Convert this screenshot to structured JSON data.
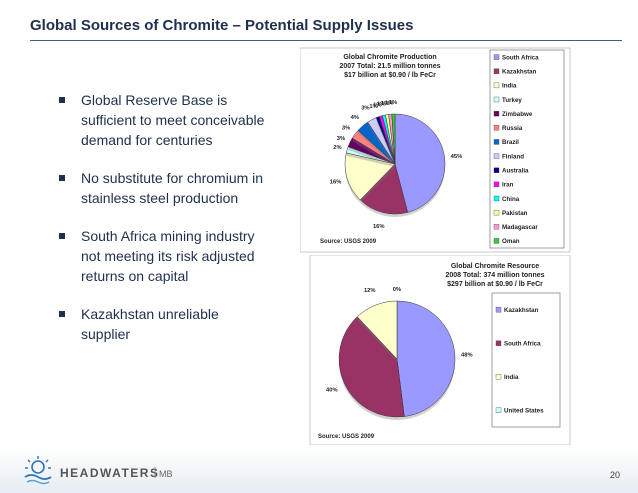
{
  "slide": {
    "title": "Global Sources of Chromite – Potential Supply Issues",
    "page_number": "20"
  },
  "bullets": [
    "Global Reserve Base is sufficient to meet conceivable demand for centuries",
    "No substitute for chromium in stainless steel production",
    "South Africa mining industry not meeting its risk adjusted returns on capital",
    "Kazakhstan unreliable supplier"
  ],
  "logo": {
    "brand": "HEADWATERS",
    "suffix": "MB"
  },
  "colors": {
    "title": "#1f2f4e",
    "rule": "#3b5f8a"
  },
  "chart_data": [
    {
      "type": "pie",
      "title": "Global Chromite Production",
      "subtitle": [
        "2007 Total: 21.5 million tonnes",
        "$17 billion at $0.90 / lb FeCr"
      ],
      "source": "Source: USGS 2009",
      "legend": "right",
      "categories": [
        "South Africa",
        "Kazakhstan",
        "India",
        "Turkey",
        "Zimbabwe",
        "Russia",
        "Brazil",
        "Finland",
        "Australia",
        "Iran",
        "China",
        "Pakistan",
        "Madagascar",
        "Oman"
      ],
      "values": [
        45,
        16,
        16,
        2,
        3,
        3,
        4,
        3,
        1,
        1,
        1,
        1,
        1,
        1
      ],
      "labels": [
        "45%",
        "16%",
        "16%",
        "2%",
        "3%",
        "3%",
        "4%",
        "3%",
        "1%",
        "1%",
        "1%",
        "1%",
        "1%",
        "1%"
      ],
      "colors": [
        "#9999ff",
        "#993366",
        "#ffffcc",
        "#ccffff",
        "#660066",
        "#ff8080",
        "#0066cc",
        "#ccccff",
        "#000080",
        "#ff00ff",
        "#00ffff",
        "#ffff99",
        "#ff99cc",
        "#33cc33"
      ]
    },
    {
      "type": "pie",
      "title": "Global Chromite Resource",
      "subtitle": [
        "2008 Total: 374 million tonnes",
        "$297 billion at $0.90 / lb FeCr"
      ],
      "source": "Source: USGS 2009",
      "legend": "right",
      "categories": [
        "Kazakhstan",
        "South Africa",
        "India",
        "United States"
      ],
      "values": [
        48,
        40,
        12,
        0
      ],
      "labels": [
        "48%",
        "40%",
        "12%",
        "0%"
      ],
      "colors": [
        "#9999ff",
        "#993366",
        "#ffffcc",
        "#ccffff"
      ]
    }
  ]
}
